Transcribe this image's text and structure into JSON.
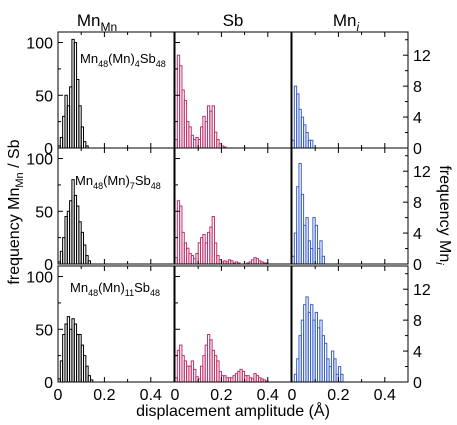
{
  "figure": {
    "column_titles": [
      {
        "base": "Mn",
        "sub": "Mn",
        "italic_sub": false
      },
      {
        "base": "Sb",
        "sub": "",
        "italic_sub": false
      },
      {
        "base": "Mn",
        "sub": "i",
        "italic_sub": true
      }
    ],
    "xlabel": "displacement amplitude (Å)",
    "ylabel_left": {
      "pre": "frequency Mn",
      "sub": "Mn",
      "post": " / Sb"
    },
    "ylabel_right": {
      "pre": "frequency Mn",
      "sub": "i"
    },
    "row_labels": [
      [
        "Mn",
        "48",
        "(Mn)",
        "4",
        "Sb",
        "48"
      ],
      [
        "Mn",
        "48",
        "(Mn)",
        "7",
        "Sb",
        "48"
      ],
      [
        "Mn",
        "48",
        "(Mn)",
        "11",
        "Sb",
        "48"
      ]
    ],
    "colors": {
      "Mn_Mn": "#000000",
      "Sb": "#c0306a",
      "Mn_i": "#3b5fc8"
    }
  },
  "chart_data": [
    {
      "type": "bar",
      "row": 1,
      "column": "Mn_Mn",
      "title": "Mn48(Mn)4Sb48",
      "xlim": [
        0,
        0.5
      ],
      "ylim": [
        0,
        110
      ],
      "xticks": [
        0,
        0.2,
        0.4
      ],
      "yticks": [
        0,
        50,
        100
      ],
      "bin_width": 0.01,
      "bin_start": 0.0,
      "values": [
        2,
        10,
        30,
        50,
        40,
        58,
        103,
        100,
        65,
        40,
        20,
        6,
        2
      ]
    },
    {
      "type": "bar",
      "row": 1,
      "column": "Sb",
      "xlim": [
        0,
        0.5
      ],
      "ylim": [
        0,
        110
      ],
      "bin_width": 0.01,
      "bin_start": 0.0,
      "values": [
        8,
        88,
        78,
        55,
        45,
        25,
        20,
        12,
        8,
        10,
        8,
        20,
        30,
        25,
        40,
        35,
        40,
        15,
        8,
        4,
        2,
        1
      ]
    },
    {
      "type": "bar",
      "row": 1,
      "column": "Mn_i",
      "xlim": [
        0,
        0.5
      ],
      "ylim": [
        0,
        15
      ],
      "yticks": [
        0,
        4,
        8,
        12
      ],
      "bin_width": 0.01,
      "bin_start": 0.0,
      "values": [
        1,
        8,
        7,
        5,
        4,
        3,
        2,
        1,
        1,
        0,
        0,
        0,
        0
      ]
    },
    {
      "type": "bar",
      "row": 2,
      "column": "Mn_Mn",
      "title": "Mn48(Mn)7Sb48",
      "xlim": [
        0,
        0.5
      ],
      "ylim": [
        0,
        110
      ],
      "bin_width": 0.01,
      "bin_start": 0.0,
      "values": [
        2,
        12,
        25,
        45,
        50,
        60,
        80,
        65,
        55,
        40,
        30,
        18,
        8,
        3
      ]
    },
    {
      "type": "bar",
      "row": 2,
      "column": "Sb",
      "xlim": [
        0,
        0.5
      ],
      "ylim": [
        0,
        110
      ],
      "bin_width": 0.01,
      "bin_start": 0.0,
      "values": [
        6,
        60,
        55,
        30,
        20,
        15,
        10,
        8,
        5,
        10,
        20,
        25,
        28,
        20,
        30,
        35,
        45,
        20,
        8,
        4,
        2,
        3,
        2,
        4,
        3,
        1,
        2,
        1,
        0,
        0,
        0,
        1,
        2,
        4,
        6,
        5,
        3,
        2,
        1,
        1
      ]
    },
    {
      "type": "bar",
      "row": 2,
      "column": "Mn_i",
      "xlim": [
        0,
        0.5
      ],
      "ylim": [
        0,
        15
      ],
      "bin_width": 0.01,
      "bin_start": 0.0,
      "values": [
        1,
        4,
        10,
        13,
        9,
        5,
        6,
        3,
        2,
        6,
        5,
        2,
        3,
        1,
        0,
        0,
        0,
        0
      ]
    },
    {
      "type": "bar",
      "row": 3,
      "column": "Mn_Mn",
      "title": "Mn48(Mn)11Sb48",
      "xlim": [
        0,
        0.5
      ],
      "ylim": [
        0,
        110
      ],
      "bin_width": 0.01,
      "bin_start": 0.0,
      "values": [
        3,
        20,
        45,
        55,
        62,
        50,
        60,
        55,
        45,
        45,
        35,
        25,
        15,
        6,
        2
      ]
    },
    {
      "type": "bar",
      "row": 3,
      "column": "Sb",
      "xlim": [
        0,
        0.5
      ],
      "ylim": [
        0,
        110
      ],
      "bin_width": 0.01,
      "bin_start": 0.0,
      "values": [
        4,
        30,
        35,
        25,
        20,
        15,
        15,
        20,
        12,
        5,
        3,
        15,
        25,
        35,
        45,
        40,
        30,
        25,
        20,
        10,
        6,
        6,
        4,
        4,
        4,
        6,
        8,
        10,
        12,
        10,
        6,
        6,
        4,
        3,
        8,
        6,
        4,
        3,
        2,
        1
      ]
    },
    {
      "type": "bar",
      "row": 3,
      "column": "Mn_i",
      "xlim": [
        0,
        0.5
      ],
      "ylim": [
        0,
        15
      ],
      "bin_width": 0.01,
      "bin_start": 0.0,
      "values": [
        0,
        1,
        3,
        6,
        8,
        10,
        11,
        9,
        10,
        8,
        9,
        7,
        8,
        6,
        5,
        3,
        2,
        4,
        3,
        1,
        2,
        1
      ]
    }
  ]
}
